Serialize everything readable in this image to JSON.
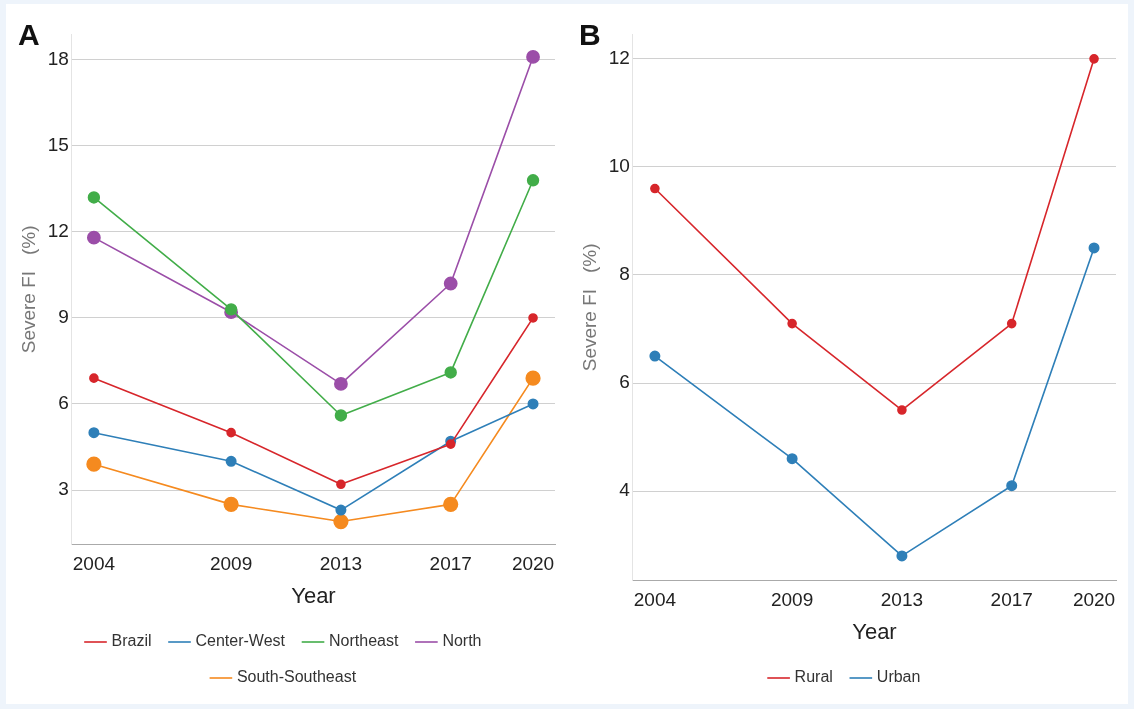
{
  "chart_data": [
    {
      "type": "line",
      "annotations": [
        "A"
      ],
      "xlabel": "Year",
      "ylabel": "Severe FI   (%)",
      "x": [
        2004,
        2009,
        2013,
        2017,
        2020
      ],
      "xlim": [
        2003.2,
        2020.8
      ],
      "xticks": [
        2004,
        2009,
        2013,
        2017,
        2020
      ],
      "ylim": [
        1.09,
        18.9
      ],
      "yticks": [
        3,
        6,
        9,
        12,
        15,
        18
      ],
      "grid": "y",
      "legend": "bottom",
      "marker": "circle",
      "line_style": "solid",
      "series": [
        {
          "name": "Brazil",
          "color": "#d7262b",
          "values": [
            6.9,
            5.0,
            3.2,
            4.6,
            9.0
          ]
        },
        {
          "name": "Center-West",
          "color": "#2e7fb8",
          "values": [
            5.0,
            4.0,
            2.3,
            4.7,
            6.0
          ]
        },
        {
          "name": "Northeast",
          "color": "#42ad49",
          "values": [
            13.2,
            9.3,
            5.6,
            7.1,
            13.8
          ]
        },
        {
          "name": "North",
          "color": "#9b4ea8",
          "values": [
            11.8,
            9.2,
            6.7,
            10.2,
            18.1
          ]
        },
        {
          "name": "South-Southeast",
          "color": "#f58a1f",
          "values": [
            3.9,
            2.5,
            1.9,
            2.5,
            6.9
          ]
        }
      ]
    },
    {
      "type": "line",
      "annotations": [
        "B"
      ],
      "xlabel": "Year",
      "ylabel": "Severe FI   (%)",
      "x": [
        2004,
        2009,
        2013,
        2017,
        2020
      ],
      "xlim": [
        2003.2,
        2020.8
      ],
      "xticks": [
        2004,
        2009,
        2013,
        2017,
        2020
      ],
      "ylim": [
        2.34,
        12.46
      ],
      "yticks": [
        4,
        6,
        8,
        10,
        12
      ],
      "grid": "y",
      "legend": "bottom",
      "marker": "circle",
      "line_style": "solid",
      "series": [
        {
          "name": "Rural",
          "color": "#d7262b",
          "values": [
            9.6,
            7.1,
            5.5,
            7.1,
            12.0
          ]
        },
        {
          "name": "Urban",
          "color": "#2e7fb8",
          "values": [
            6.5,
            4.6,
            2.8,
            4.1,
            8.5
          ]
        }
      ]
    }
  ]
}
